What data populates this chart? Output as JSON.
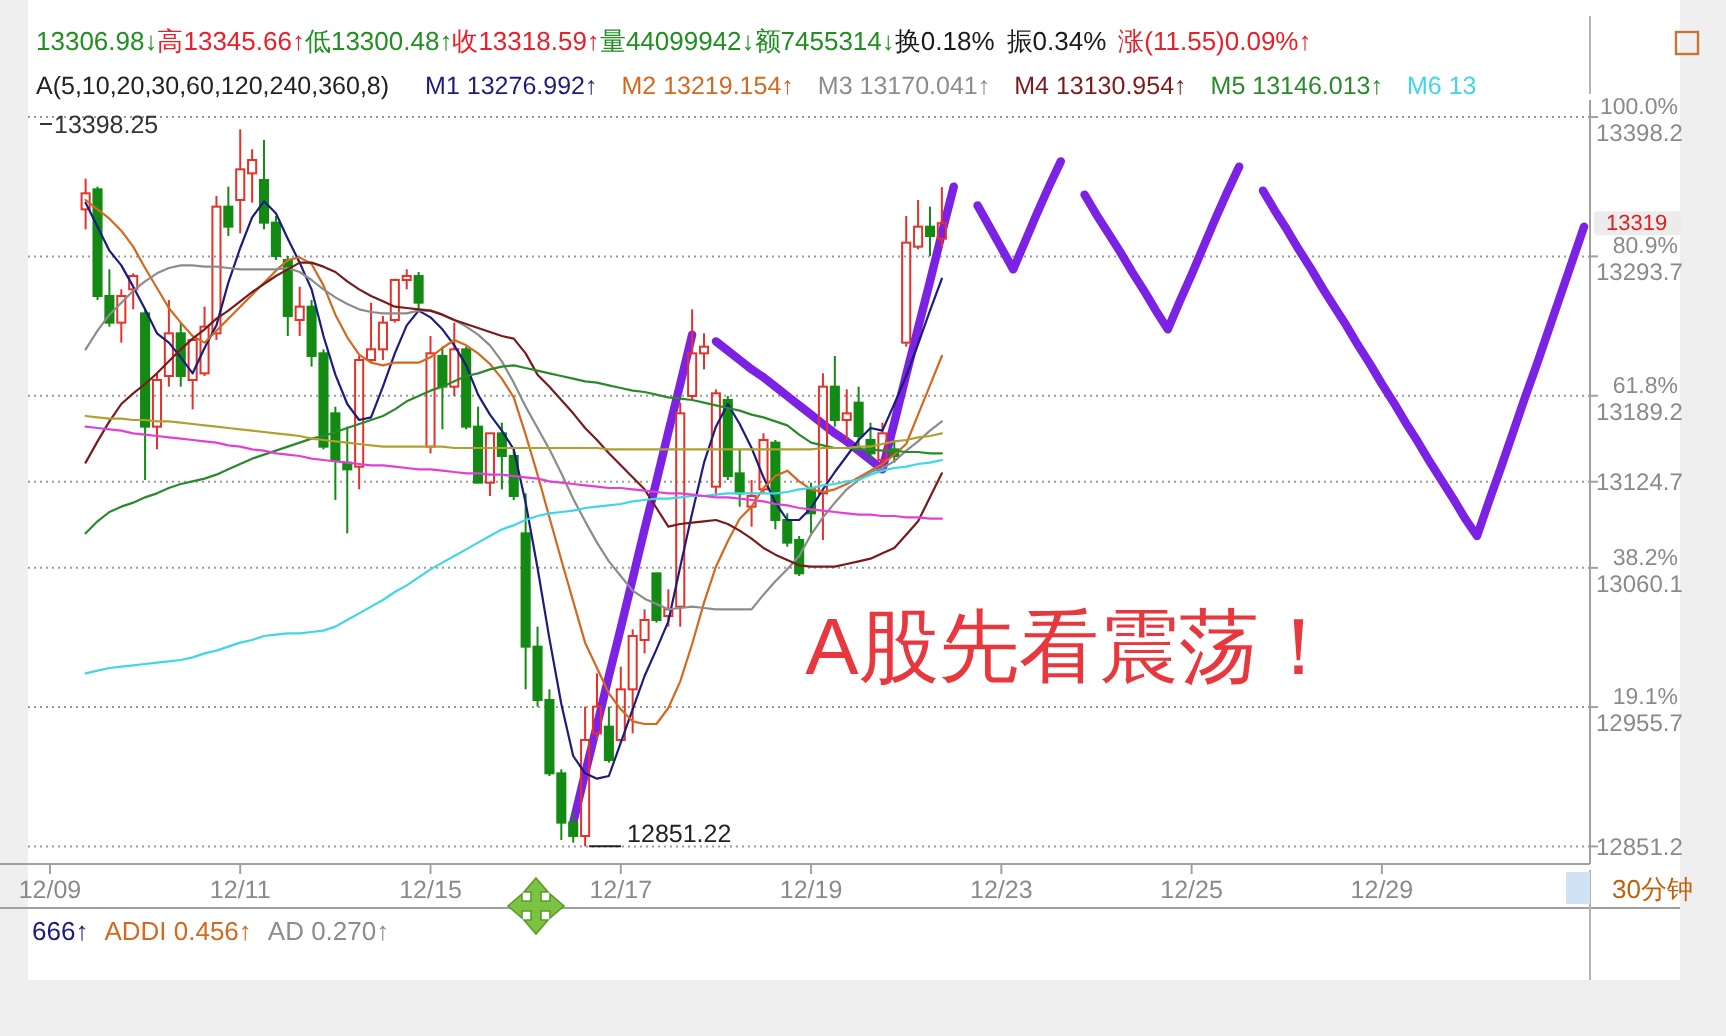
{
  "chart_data": {
    "type": "candlestick",
    "annotations": [
      "13306.98↓",
      "高13345.66↑",
      "低13300.48↑",
      "收13318.59↑",
      "量44099942↓",
      "额7455314↓",
      "换0.18%",
      "振0.34%",
      "涨(11.55)0.09%↑",
      "13398.25",
      "A股先看震荡！",
      "666↑",
      "ADDI 0.456↑",
      "AD 0.270↑",
      "30分钟",
      "12851.22",
      "13319"
    ],
    "legend": "top",
    "legend_title": "A(5,10,20,30,60,120,240,360,8)",
    "grid": "y",
    "ylim": [
      12838,
      13411
    ],
    "yticks": [
      12851.2,
      {
        "value": 12955.7,
        "label": "19.1%\n12955.7"
      },
      {
        "value": 13060.1,
        "label": "38.2%\n13060.1"
      },
      13124.7,
      {
        "value": 13189.2,
        "label": "61.8%\n13189.2"
      },
      {
        "value": 13293.7,
        "label": "80.9%\n13293.7"
      },
      {
        "value": 13398.2,
        "label": "100.0%\n13398.2"
      }
    ],
    "categories": [
      "12/09",
      null,
      null,
      null,
      null,
      null,
      null,
      null,
      null,
      null,
      null,
      null,
      null,
      null,
      null,
      null,
      "12/11",
      null,
      null,
      null,
      null,
      null,
      null,
      null,
      null,
      null,
      null,
      null,
      null,
      null,
      null,
      null,
      "12/15",
      null,
      null,
      null,
      null,
      null,
      null,
      null,
      null,
      null,
      null,
      null,
      null,
      null,
      null,
      null,
      "12/17",
      null,
      null,
      null,
      null,
      null,
      null,
      null,
      null,
      null,
      null,
      null,
      null,
      null,
      null,
      null,
      "12/19",
      null,
      null,
      null,
      null,
      null,
      null,
      null,
      null,
      null,
      null,
      null,
      null,
      null,
      null,
      null,
      "12/23",
      null,
      null,
      null,
      null,
      null,
      null,
      null,
      null,
      null,
      null,
      null,
      null,
      null,
      null,
      null,
      "12/25",
      null,
      null,
      null,
      null,
      null,
      null,
      null,
      null,
      null,
      null,
      null,
      null,
      null,
      null,
      null,
      "12/29",
      null,
      null,
      null,
      null,
      null,
      null,
      null,
      null,
      null,
      null,
      null,
      null,
      null,
      null,
      null,
      null,
      null
    ],
    "ohlc": [
      null,
      null,
      null,
      [
        13329,
        13352,
        13314,
        13341
      ],
      [
        13344,
        13346,
        13261,
        13264
      ],
      [
        13264,
        13284,
        13241,
        13244
      ],
      [
        13244,
        13269,
        13229,
        13264
      ],
      [
        13269,
        13281,
        13254,
        13279
      ],
      [
        13251,
        13254,
        13126,
        13166
      ],
      [
        13166,
        13206,
        13149,
        13201
      ],
      [
        13204,
        13261,
        13196,
        13236
      ],
      [
        13236,
        13244,
        13196,
        13204
      ],
      [
        13201,
        13231,
        13179,
        13231
      ],
      [
        13206,
        13256,
        13204,
        13241
      ],
      [
        13236,
        13339,
        13231,
        13331
      ],
      [
        13331,
        13346,
        13309,
        13316
      ],
      [
        13336,
        13389,
        13311,
        13359
      ],
      [
        13356,
        13374,
        13334,
        13366
      ],
      [
        13351,
        13381,
        13314,
        13319
      ],
      [
        13319,
        13324,
        13291,
        13294
      ],
      [
        13291,
        13294,
        13234,
        13249
      ],
      [
        13246,
        13271,
        13234,
        13256
      ],
      [
        13256,
        13261,
        13211,
        13219
      ],
      [
        13221,
        13224,
        13149,
        13151
      ],
      [
        13176,
        13181,
        13111,
        13141
      ],
      [
        13139,
        13166,
        13086,
        13134
      ],
      [
        13136,
        13219,
        13119,
        13216
      ],
      [
        13216,
        13259,
        13214,
        13224
      ],
      [
        13224,
        13249,
        13216,
        13244
      ],
      [
        13246,
        13277,
        13244,
        13276
      ],
      [
        13276,
        13284,
        13269,
        13279
      ],
      [
        13279,
        13282,
        13254,
        13259
      ],
      [
        13151,
        13234,
        13146,
        13221
      ],
      [
        13219,
        13226,
        13164,
        13196
      ],
      [
        13196,
        13244,
        13189,
        13224
      ],
      [
        13224,
        13226,
        13164,
        13166
      ],
      [
        13166,
        13181,
        13124,
        13124
      ],
      [
        13124,
        13161,
        13114,
        13161
      ],
      [
        13161,
        13169,
        13119,
        13144
      ],
      [
        13144,
        13149,
        13111,
        13114
      ],
      [
        13086,
        13116,
        12969,
        13001
      ],
      [
        13001,
        13016,
        12956,
        12961
      ],
      [
        12961,
        12969,
        12904,
        12906
      ],
      [
        12906,
        12909,
        12856,
        12869
      ],
      [
        12869,
        12876,
        12854,
        12859
      ],
      [
        12859,
        12956,
        12851.22,
        12931
      ],
      [
        12936,
        12981,
        12931,
        12956
      ],
      [
        12941,
        12956,
        12914,
        12916
      ],
      [
        12931,
        12986,
        12929,
        12969
      ],
      [
        12969,
        13014,
        12936,
        13009
      ],
      [
        13006,
        13029,
        12996,
        13021
      ],
      [
        13056,
        13056,
        13019,
        13021
      ],
      [
        13024,
        13044,
        13016,
        13029
      ],
      [
        13031,
        13184,
        13016,
        13176
      ],
      [
        13189,
        13254,
        13186,
        13221
      ],
      [
        13221,
        13236,
        13209,
        13226
      ],
      [
        13121,
        13194,
        13114,
        13191
      ],
      [
        13186,
        13189,
        13126,
        13129
      ],
      [
        13131,
        13149,
        13106,
        13116
      ],
      [
        13106,
        13126,
        13091,
        13114
      ],
      [
        13119,
        13161,
        13116,
        13156
      ],
      [
        13154,
        13156,
        13089,
        13096
      ],
      [
        13096,
        13101,
        13076,
        13079
      ],
      [
        13081,
        13084,
        13054,
        13056
      ],
      [
        13119,
        13124,
        13086,
        13101
      ],
      [
        13116,
        13206,
        13081,
        13196
      ],
      [
        13196,
        13219,
        13166,
        13171
      ],
      [
        13171,
        13194,
        13156,
        13176
      ],
      [
        13184,
        13196,
        13149,
        13159
      ],
      [
        13156,
        13169,
        13141,
        13146
      ],
      [
        13141,
        13169,
        13134,
        13161
      ],
      [
        13149,
        13156,
        13139,
        13144
      ],
      [
        13229,
        13324,
        13226,
        13304
      ],
      [
        13301,
        13336,
        13299,
        13316
      ],
      [
        13316,
        13331,
        13294,
        13309
      ],
      [
        13306.98,
        13345.66,
        13300.48,
        13318.59
      ],
      null,
      null,
      null,
      null,
      null,
      null,
      null,
      null,
      null,
      null,
      null,
      null,
      null,
      null,
      null,
      null,
      null,
      null,
      null,
      null,
      null,
      null,
      null,
      null,
      null,
      null,
      null,
      null,
      null,
      null,
      null,
      null,
      null,
      null,
      null,
      null,
      null,
      null,
      null,
      null,
      null,
      null,
      null,
      null,
      null,
      null,
      null,
      null,
      null,
      null,
      null,
      null,
      null,
      null
    ],
    "colors": [
      null,
      null,
      null,
      "#e8302a",
      "#138a13",
      "#138a13",
      "#e8302a",
      "#e8302a",
      "#138a13",
      "#e8302a",
      "#e8302a",
      "#138a13",
      "#e8302a",
      "#e8302a",
      "#e8302a",
      "#138a13",
      "#e8302a",
      "#e8302a",
      "#138a13",
      "#138a13",
      "#138a13",
      "#e8302a",
      "#138a13",
      "#138a13",
      "#138a13",
      "#138a13",
      "#e8302a",
      "#e8302a",
      "#e8302a",
      "#e8302a",
      "#e8302a",
      "#138a13",
      "#e8302a",
      "#138a13",
      "#e8302a",
      "#138a13",
      "#138a13",
      "#e8302a",
      "#138a13",
      "#138a13",
      "#138a13",
      "#138a13",
      "#138a13",
      "#138a13",
      "#138a13",
      "#e8302a",
      "#e8302a",
      "#138a13",
      "#e8302a",
      "#e8302a",
      "#e8302a",
      "#138a13",
      "#e8302a",
      "#e8302a",
      "#e8302a",
      "#e8302a",
      "#e8302a",
      "#138a13",
      "#138a13",
      "#e8302a",
      "#e8302a",
      "#138a13",
      "#138a13",
      "#138a13",
      "#138a13",
      "#e8302a",
      "#138a13",
      "#e8302a",
      "#138a13",
      "#138a13",
      "#e8302a",
      "#138a13",
      "#e8302a",
      "#e8302a",
      "#138a13",
      "#e8302a",
      null,
      null,
      null,
      null,
      null,
      null,
      null,
      null,
      null,
      null,
      null,
      null,
      null,
      null,
      null,
      null,
      null,
      null,
      null,
      null,
      null,
      null,
      null,
      null,
      null,
      null,
      null,
      null,
      null,
      null,
      null,
      null,
      null,
      null,
      null,
      null,
      null,
      null,
      null,
      null,
      null,
      null,
      null,
      null,
      null,
      null,
      null,
      null,
      null,
      null,
      null,
      null,
      null,
      null
    ],
    "series": [
      {
        "name": "M1 13276.992↑",
        "type": "line",
        "color": "#1c1c80",
        "values": [
          null,
          null,
          null,
          13334,
          13316,
          13298,
          13287,
          13271,
          13254,
          13236,
          13229,
          13218,
          13206,
          13225,
          13242,
          13274,
          13300,
          13323,
          13335,
          13326,
          13307,
          13289,
          13269,
          13234,
          13205,
          13183,
          13171,
          13173,
          13196,
          13221,
          13242,
          13253,
          13248,
          13239,
          13227,
          13212,
          13190,
          13175,
          13163,
          13149,
          13109,
          13060,
          13007,
          12958,
          12919,
          12906,
          12902,
          12904,
          12929,
          12954,
          12979,
          12999,
          13020,
          13061,
          13101,
          13139,
          13166,
          13183,
          13168,
          13150,
          13128,
          13109,
          13096,
          13096,
          13105,
          13119,
          13132,
          13144,
          13156,
          13165,
          13163,
          13183,
          13204,
          13228,
          13253,
          13277,
          null,
          null,
          null,
          null,
          null,
          null,
          null,
          null,
          null,
          null,
          null,
          null,
          null,
          null,
          null,
          null,
          null,
          null,
          null,
          null,
          null,
          null,
          null,
          null,
          null,
          null,
          null,
          null,
          null,
          null,
          null,
          null,
          null,
          null,
          null,
          null,
          null,
          null,
          null,
          null,
          null,
          null,
          null,
          null,
          null,
          null,
          null,
          null,
          null,
          null,
          null,
          null,
          null,
          null
        ]
      },
      {
        "name": "M2 13219.154↑",
        "type": "line",
        "color": "#d2691e",
        "values": [
          null,
          null,
          null,
          13336,
          13329,
          13322,
          13313,
          13301,
          13285,
          13270,
          13255,
          13244,
          13234,
          13229,
          13238,
          13247,
          13256,
          13265,
          13274,
          13283,
          13291,
          13293,
          13288,
          13272,
          13250,
          13233,
          13220,
          13214,
          13212,
          13214,
          13214,
          13214,
          13218,
          13225,
          13231,
          13227,
          13221,
          13213,
          13202,
          13188,
          13160,
          13130,
          13098,
          13066,
          13035,
          13004,
          12985,
          12966,
          12954,
          12945,
          12943,
          12943,
          12955,
          12975,
          13003,
          13034,
          13061,
          13080,
          13097,
          13106,
          13120,
          13129,
          13133,
          13125,
          13119,
          13117,
          13119,
          13123,
          13128,
          13133,
          13138,
          13145,
          13153,
          13175,
          13197,
          13219,
          null,
          null,
          null,
          null,
          null,
          null,
          null,
          null,
          null,
          null,
          null,
          null,
          null,
          null,
          null,
          null,
          null,
          null,
          null,
          null,
          null,
          null,
          null,
          null,
          null,
          null,
          null,
          null,
          null,
          null,
          null,
          null,
          null,
          null,
          null,
          null,
          null,
          null,
          null,
          null,
          null,
          null,
          null,
          null,
          null,
          null,
          null,
          null,
          null,
          null,
          null,
          null,
          null,
          null
        ]
      },
      {
        "name": "M3 13170.041↑",
        "type": "line",
        "color": "#8c8c8c",
        "values": [
          null,
          null,
          null,
          13224,
          13238,
          13250,
          13259,
          13268,
          13275,
          13281,
          13285,
          13287,
          13287,
          13286,
          13286,
          13285,
          13284,
          13284,
          13284,
          13284,
          13285,
          13282,
          13276,
          13269,
          13263,
          13258,
          13254,
          13252,
          13251,
          13251,
          13251,
          13253,
          13253,
          13250,
          13246,
          13241,
          13235,
          13227,
          13215,
          13199,
          13181,
          13165,
          13149,
          13131,
          13112,
          13095,
          13079,
          13065,
          13054,
          13043,
          13037,
          13033,
          13029,
          13030,
          13031,
          13030,
          13029,
          13029,
          13029,
          13029,
          13040,
          13050,
          13059,
          13069,
          13085,
          13098,
          13109,
          13119,
          13126,
          13132,
          13135,
          13140,
          13148,
          13155,
          13163,
          13170,
          null,
          null,
          null,
          null,
          null,
          null,
          null,
          null,
          null,
          null,
          null,
          null,
          null,
          null,
          null,
          null,
          null,
          null,
          null,
          null,
          null,
          null,
          null,
          null,
          null,
          null,
          null,
          null,
          null,
          null,
          null,
          null,
          null,
          null,
          null,
          null,
          null,
          null,
          null,
          null,
          null,
          null,
          null,
          null,
          null,
          null,
          null,
          null,
          null,
          null,
          null,
          null,
          null,
          null
        ]
      },
      {
        "name": "M4 13130.954↑",
        "type": "line",
        "color": "#7a1a1a",
        "values": [
          null,
          null,
          null,
          13139,
          13155,
          13170,
          13183,
          13191,
          13198,
          13206,
          13215,
          13224,
          13232,
          13239,
          13247,
          13253,
          13260,
          13267,
          13273,
          13279,
          13284,
          13289,
          13289,
          13286,
          13282,
          13275,
          13269,
          13264,
          13260,
          13256,
          13255,
          13254,
          13253,
          13250,
          13246,
          13243,
          13240,
          13237,
          13234,
          13232,
          13221,
          13205,
          13196,
          13186,
          13176,
          13165,
          13156,
          13146,
          13137,
          13128,
          13119,
          13105,
          13091,
          13093,
          13094,
          13095,
          13096,
          13093,
          13088,
          13082,
          13075,
          13070,
          13066,
          13062,
          13061,
          13061,
          13061,
          13063,
          13065,
          13067,
          13071,
          13075,
          13085,
          13095,
          13113,
          13131,
          null,
          null,
          null,
          null,
          null,
          null,
          null,
          null,
          null,
          null,
          null,
          null,
          null,
          null,
          null,
          null,
          null,
          null,
          null,
          null,
          null,
          null,
          null,
          null,
          null,
          null,
          null,
          null,
          null,
          null,
          null,
          null,
          null,
          null,
          null,
          null,
          null,
          null,
          null,
          null,
          null,
          null,
          null,
          null,
          null,
          null,
          null,
          null,
          null,
          null,
          null,
          null,
          null,
          null
        ]
      },
      {
        "name": "M5 13146.013↑",
        "type": "line",
        "color": "#2a8a2a",
        "values": [
          null,
          null,
          null,
          13086,
          13095,
          13102,
          13106,
          13109,
          13113,
          13116,
          13120,
          13123,
          13125,
          13127,
          13130,
          13134,
          13138,
          13142,
          13145,
          13148,
          13151,
          13154,
          13157,
          13159,
          13162,
          13165,
          13168,
          13171,
          13174,
          13179,
          13185,
          13189,
          13193,
          13196,
          13200,
          13204,
          13206,
          13209,
          13211,
          13212,
          13210,
          13208,
          13206,
          13204,
          13202,
          13200,
          13199,
          13197,
          13195,
          13193,
          13192,
          13190,
          13188,
          13187,
          13186,
          13184,
          13182,
          13180,
          13178,
          13175,
          13173,
          13170,
          13167,
          13160,
          13154,
          13152,
          13150,
          13150,
          13149,
          13149,
          13148,
          13148,
          13147,
          13147,
          13146,
          13146,
          null,
          null,
          null,
          null,
          null,
          null,
          null,
          null,
          null,
          null,
          null,
          null,
          null,
          null,
          null,
          null,
          null,
          null,
          null,
          null,
          null,
          null,
          null,
          null,
          null,
          null,
          null,
          null,
          null,
          null,
          null,
          null,
          null,
          null,
          null,
          null,
          null,
          null,
          null,
          null,
          null,
          null,
          null,
          null,
          null,
          null,
          null,
          null,
          null,
          null,
          null,
          null,
          null,
          null
        ]
      },
      {
        "name": "M6 13",
        "type": "line",
        "color": "#3fd6e6",
        "values": [
          null,
          null,
          null,
          12981,
          12983,
          12985,
          12986,
          12987,
          12988,
          12989,
          12990,
          12991,
          12993,
          12996,
          12998,
          13001,
          13004,
          13006,
          13009,
          13010,
          13011,
          13011,
          13012,
          13013,
          13016,
          13021,
          13026,
          13031,
          13036,
          13042,
          13047,
          13053,
          13059,
          13064,
          13069,
          13074,
          13079,
          13084,
          13089,
          13092,
          13096,
          13099,
          13101,
          13102,
          13103,
          13105,
          13106,
          13107,
          13108,
          13110,
          13111,
          13112,
          13112,
          13113,
          13114,
          13114,
          13115,
          13116,
          13116,
          13116,
          13116,
          13116,
          13117,
          13119,
          13120,
          13122,
          13123,
          13125,
          13126,
          13130,
          13133,
          13135,
          13136,
          13138,
          13139,
          13141,
          null,
          null,
          null,
          null,
          null,
          null,
          null,
          null,
          null,
          null,
          null,
          null,
          null,
          null,
          null,
          null,
          null,
          null,
          null,
          null,
          null,
          null,
          null,
          null,
          null,
          null,
          null,
          null,
          null,
          null,
          null,
          null,
          null,
          null,
          null,
          null,
          null,
          null,
          null,
          null,
          null,
          null,
          null,
          null,
          null,
          null,
          null,
          null,
          null,
          null,
          null,
          null,
          null,
          null
        ]
      },
      {
        "type": "line",
        "color": "#b0a030",
        "values": [
          null,
          null,
          null,
          13174,
          13173,
          13172,
          13172,
          13171,
          13171,
          13170,
          13170,
          13169,
          13168,
          13167,
          13166,
          13165,
          13164,
          13163,
          13162,
          13161,
          13160,
          13159,
          13157,
          13156,
          13155,
          13154,
          13153,
          13152,
          13151,
          13151,
          13151,
          13151,
          13151,
          13151,
          13150,
          13150,
          13150,
          13150,
          13150,
          13150,
          13150,
          13150,
          13150,
          13150,
          13150,
          13150,
          13150,
          13149,
          13149,
          13149,
          13149,
          13149,
          13149,
          13149,
          13149,
          13149,
          13149,
          13149,
          13149,
          13149,
          13149,
          13149,
          13149,
          13149,
          13149,
          13150,
          13150,
          13150,
          13151,
          13151,
          13153,
          13155,
          13156,
          13158,
          13159,
          13161,
          null,
          null,
          null,
          null,
          null,
          null,
          null,
          null,
          null,
          null,
          null,
          null,
          null,
          null,
          null,
          null,
          null,
          null,
          null,
          null,
          null,
          null,
          null,
          null,
          null,
          null,
          null,
          null,
          null,
          null,
          null,
          null,
          null,
          null,
          null,
          null,
          null,
          null,
          null,
          null,
          null,
          null,
          null,
          null,
          null,
          null,
          null,
          null,
          null,
          null,
          null,
          null,
          null,
          null
        ]
      },
      {
        "type": "line",
        "color": "#e040d8",
        "values": [
          null,
          null,
          null,
          13166,
          13165,
          13164,
          13163,
          13161,
          13160,
          13159,
          13158,
          13157,
          13156,
          13155,
          13154,
          13152,
          13151,
          13149,
          13148,
          13146,
          13145,
          13144,
          13142,
          13141,
          13140,
          13139,
          13138,
          13137,
          13137,
          13136,
          13135,
          13134,
          13134,
          13133,
          13132,
          13131,
          13131,
          13130,
          13130,
          13129,
          13128,
          13127,
          13125,
          13124,
          13123,
          13122,
          13121,
          13120,
          13120,
          13119,
          13118,
          13117,
          13116,
          13116,
          13115,
          13114,
          13113,
          13113,
          13112,
          13111,
          13110,
          13108,
          13107,
          13105,
          13104,
          13103,
          13102,
          13101,
          13100,
          13100,
          13099,
          13099,
          13098,
          13098,
          13097,
          13097,
          null,
          null,
          null,
          null,
          null,
          null,
          null,
          null,
          null,
          null,
          null,
          null,
          null,
          null,
          null,
          null,
          null,
          null,
          null,
          null,
          null,
          null,
          null,
          null,
          null,
          null,
          null,
          null,
          null,
          null,
          null,
          null,
          null,
          null,
          null,
          null,
          null,
          null,
          null,
          null,
          null,
          null,
          null,
          null,
          null,
          null,
          null,
          null,
          null,
          null,
          null,
          null,
          null,
          null
        ]
      },
      {
        "type": "line",
        "color": "#7b22e4",
        "values": [
          null,
          null,
          null,
          null,
          null,
          null,
          null,
          null,
          null,
          null,
          null,
          null,
          null,
          null,
          null,
          null,
          null,
          null,
          null,
          null,
          null,
          null,
          null,
          null,
          null,
          null,
          null,
          null,
          null,
          null,
          null,
          null,
          null,
          null,
          null,
          null,
          null,
          null,
          null,
          null,
          null,
          null,
          null,
          null,
          12869,
          12906,
          12942,
          12979,
          13015,
          13052,
          13089,
          13125,
          13162,
          13198,
          13235,
          null,
          13230,
          13223,
          13216,
          13209,
          13203,
          13196,
          13189,
          13182,
          13175,
          13168,
          13161,
          13155,
          13148,
          13141,
          13134,
          13169,
          13205,
          13240,
          13275,
          13311,
          13346,
          null,
          13332,
          13316,
          13300,
          13284,
          13305,
          13326,
          13346,
          13365,
          null,
          13340,
          13325,
          13311,
          13297,
          13282,
          13268,
          13253,
          13239,
          13260,
          13280,
          13301,
          13322,
          13342,
          13361,
          null,
          13343,
          13328,
          13314,
          13299,
          13285,
          13270,
          13256,
          13242,
          13227,
          13213,
          13198,
          13184,
          13169,
          13155,
          13140,
          13126,
          13112,
          13097,
          13084,
          13110,
          13135,
          13161,
          13187,
          13212,
          13238,
          13264,
          13290,
          13316
        ]
      }
    ]
  }
}
